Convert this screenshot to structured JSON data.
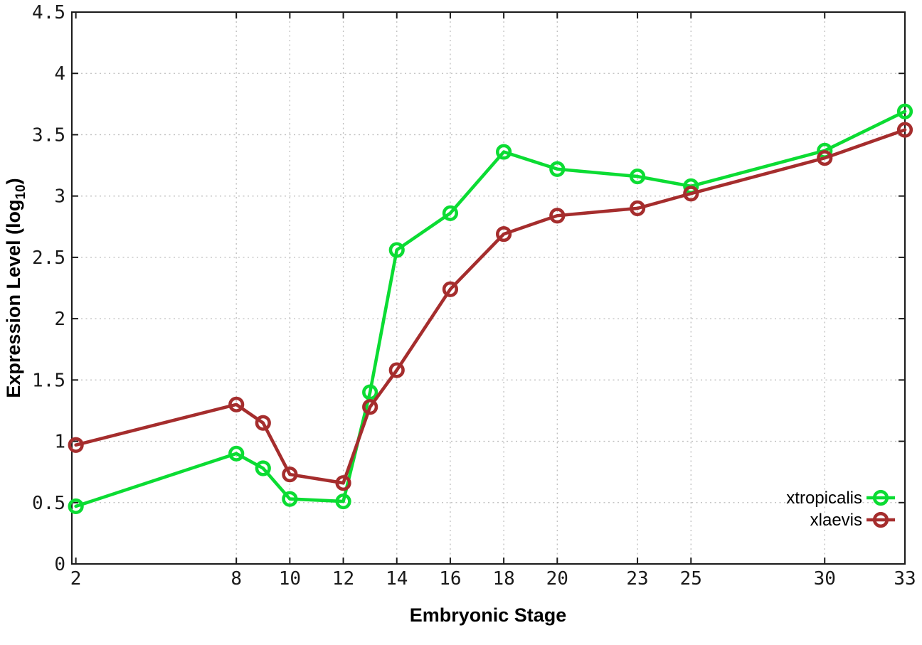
{
  "chart_data": {
    "type": "line",
    "title": "",
    "xlabel": "Embryonic Stage",
    "ylabel_prefix": "Expression Level (log",
    "ylabel_sub": "10",
    "ylabel_suffix": ")",
    "xlim": [
      1.85,
      33
    ],
    "ylim": [
      0,
      4.5
    ],
    "grid": true,
    "legend_position": "inside bottom-right",
    "x": [
      2,
      8,
      9,
      10,
      12,
      13,
      14,
      16,
      18,
      20,
      23,
      25,
      30,
      33
    ],
    "xticks": [
      2,
      8,
      10,
      12,
      14,
      16,
      18,
      20,
      23,
      25,
      30,
      33
    ],
    "yticks": [
      0,
      0.5,
      1,
      1.5,
      2,
      2.5,
      3,
      3.5,
      4,
      4.5
    ],
    "ytick_labels": [
      "0",
      "0.5",
      "1",
      "1.5",
      "2",
      "2.5",
      "3",
      "3.5",
      "4",
      "4.5"
    ],
    "series": [
      {
        "name": "xtropicalis",
        "color": "#0bdc33",
        "marker": "open-circle",
        "values": [
          0.47,
          0.9,
          0.78,
          0.53,
          0.51,
          1.4,
          2.56,
          2.86,
          3.36,
          3.22,
          3.16,
          3.08,
          3.37,
          3.69
        ]
      },
      {
        "name": "xlaevis",
        "color": "#a52d2d",
        "marker": "open-circle",
        "values": [
          0.97,
          1.3,
          1.15,
          0.73,
          0.66,
          1.28,
          1.58,
          2.24,
          2.69,
          2.84,
          2.9,
          3.02,
          3.31,
          3.54
        ]
      }
    ],
    "axis_color": "#1a1a1a",
    "grid_color": "#bdbdbd",
    "background": "#ffffff"
  }
}
